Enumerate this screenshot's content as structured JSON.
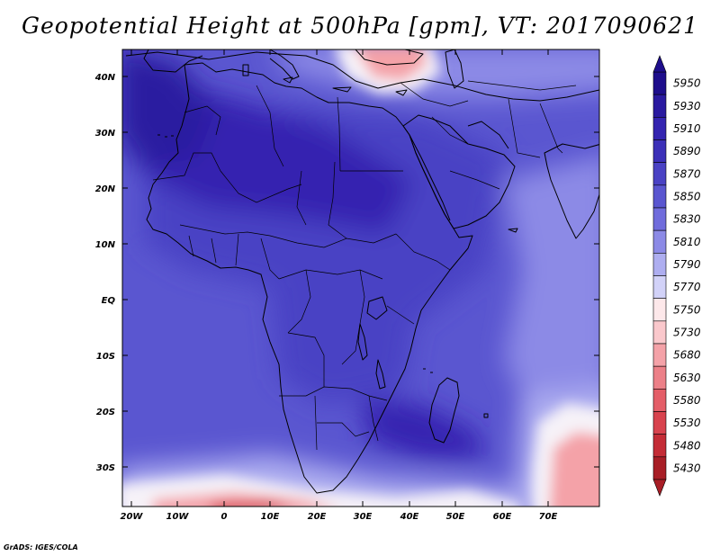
{
  "title": "Geopotential Height at 500hPa [gpm], VT: 2017090621",
  "footer": "GrADS: IGES/COLA",
  "lat_labels": [
    "40N",
    "30N",
    "20N",
    "10N",
    "EQ",
    "10S",
    "20S",
    "30S"
  ],
  "lon_labels": [
    "20W",
    "10W",
    "0",
    "10E",
    "20E",
    "30E",
    "40E",
    "50E",
    "60E",
    "70E"
  ],
  "colorbar": {
    "levels": [
      "5950",
      "5930",
      "5910",
      "5890",
      "5870",
      "5850",
      "5830",
      "5810",
      "5790",
      "5770",
      "5750",
      "5730",
      "5680",
      "5630",
      "5580",
      "5530",
      "5480",
      "5430"
    ],
    "colors": [
      "#1e0e8c",
      "#2a1aa0",
      "#3424b0",
      "#3c30b8",
      "#4a42c4",
      "#5a56d0",
      "#706cdc",
      "#8c8ae6",
      "#aeaef0",
      "#d2d2f8",
      "#fde8ea",
      "#fac8cc",
      "#f4a2a8",
      "#ec8088",
      "#e45e68",
      "#d8434e",
      "#c42c36",
      "#a81e26"
    ]
  },
  "map": {
    "extent": {
      "lon_min": -24,
      "lon_max": 80,
      "lat_min": -37,
      "lat_max": 45
    },
    "field_colors": {
      "deep": "#2a1aa0",
      "strong": "#3424b0",
      "mid": "#4a42c4",
      "ocean": "#5a56d0",
      "light": "#8c8ae6",
      "pale": "#aeaef0",
      "white": "#f6f2f8",
      "pink": "#f4a2a8",
      "red": "#d8434e"
    }
  }
}
